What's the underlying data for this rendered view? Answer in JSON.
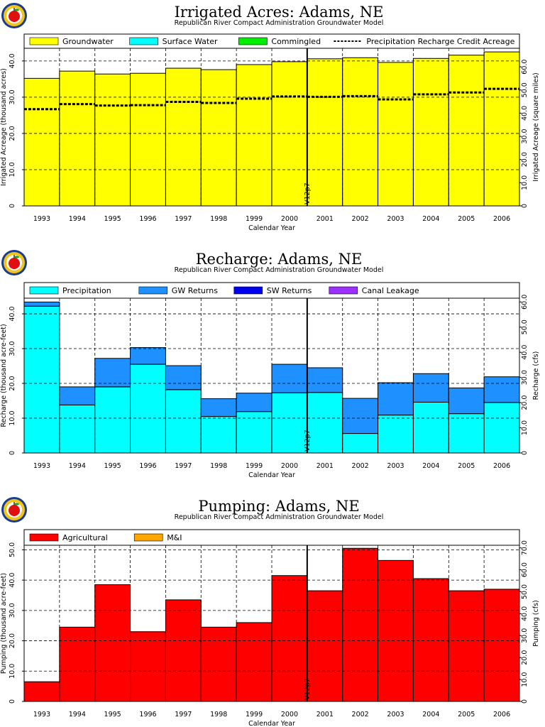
{
  "chart_data": [
    {
      "type": "bar",
      "title": "Irrigated Acres: Adams, NE",
      "subtitle": "Republican River Compact Administration Groundwater Model",
      "xlabel": "Calendar Year",
      "ylabel": "Irrigated Acreage (thousand acres)",
      "y2label": "Irrigated Acreage (square miles)",
      "categories": [
        "1993",
        "1994",
        "1995",
        "1996",
        "1997",
        "1998",
        "1999",
        "2000",
        "2001",
        "2002",
        "2003",
        "2004",
        "2005",
        "2006"
      ],
      "ylim": [
        0,
        43.5
      ],
      "yticks": [
        0,
        10.0,
        20.0,
        30.0,
        40.0
      ],
      "yticklabels": [
        "0",
        "10.0",
        "20.0",
        "30.0",
        "40.0"
      ],
      "y2lim": [
        0,
        68
      ],
      "y2ticks": [
        0,
        10.0,
        20.0,
        30.0,
        40.0,
        50.0,
        60.0
      ],
      "y2ticklabels": [
        "0",
        "10.0",
        "20.0",
        "30.0",
        "40.0",
        "50.0",
        "60.0"
      ],
      "series": [
        {
          "name": "Groundwater",
          "color": "#ffff00",
          "kind": "bar",
          "values": [
            35.2,
            37.2,
            36.4,
            36.6,
            38.0,
            37.6,
            39.0,
            39.8,
            40.6,
            40.9,
            39.6,
            40.7,
            41.6,
            42.5
          ]
        },
        {
          "name": "Surface Water",
          "color": "#00ffff",
          "kind": "bar",
          "values": [
            0,
            0,
            0,
            0,
            0,
            0,
            0,
            0,
            0,
            0,
            0,
            0,
            0,
            0
          ]
        },
        {
          "name": "Commingled",
          "color": "#00ee00",
          "kind": "bar",
          "values": [
            0,
            0,
            0,
            0,
            0,
            0,
            0,
            0,
            0,
            0,
            0,
            0,
            0,
            0
          ]
        },
        {
          "name": "Precipitation Recharge Credit Acreage",
          "color": "#000000",
          "kind": "dashed-step",
          "values": [
            26.7,
            28.1,
            27.7,
            27.8,
            28.7,
            28.4,
            29.6,
            30.2,
            30.1,
            30.3,
            29.4,
            30.8,
            31.3,
            32.3
          ]
        }
      ],
      "annotations": [
        {
          "text": "V12p7",
          "at_boundary": 8
        }
      ],
      "legend": "top"
    },
    {
      "type": "bar",
      "title": "Recharge: Adams, NE",
      "subtitle": "Republican River Compact Administration Groundwater Model",
      "xlabel": "Calendar Year",
      "ylabel": "Recharge (thousand acre-feet)",
      "y2label": "Recharge (cfs)",
      "categories": [
        "1993",
        "1994",
        "1995",
        "1996",
        "1997",
        "1998",
        "1999",
        "2000",
        "2001",
        "2002",
        "2003",
        "2004",
        "2005",
        "2006"
      ],
      "ylim": [
        0,
        44.5
      ],
      "yticks": [
        0,
        10.0,
        20.0,
        30.0,
        40.0
      ],
      "yticklabels": [
        "0",
        "10.0",
        "20.0",
        "30.0",
        "40.0"
      ],
      "y2lim": [
        0,
        61.5
      ],
      "y2ticks": [
        0,
        10.0,
        20.0,
        30.0,
        40.0,
        50.0,
        60.0
      ],
      "y2ticklabels": [
        "0",
        "10.0",
        "20.0",
        "30.0",
        "40.0",
        "50.0",
        "60.0"
      ],
      "stacked": true,
      "series": [
        {
          "name": "Precipitation",
          "color": "#00ffff",
          "kind": "bar",
          "values": [
            42.2,
            13.8,
            19.0,
            25.5,
            18.2,
            10.5,
            11.9,
            17.3,
            17.4,
            5.6,
            10.9,
            14.6,
            11.3,
            14.5
          ]
        },
        {
          "name": "GW Returns",
          "color": "#1e90ff",
          "kind": "bar",
          "values": [
            1.2,
            5.2,
            8.2,
            4.8,
            6.9,
            5.1,
            5.3,
            8.2,
            7.1,
            10.1,
            9.3,
            8.2,
            7.4,
            7.4
          ]
        },
        {
          "name": "SW Returns",
          "color": "#0000ee",
          "kind": "bar",
          "values": [
            0,
            0,
            0,
            0,
            0,
            0,
            0,
            0,
            0,
            0,
            0,
            0,
            0,
            0
          ]
        },
        {
          "name": "Canal Leakage",
          "color": "#9b30ff",
          "kind": "bar",
          "values": [
            0,
            0,
            0,
            0,
            0,
            0,
            0,
            0,
            0,
            0,
            0,
            0,
            0,
            0
          ]
        }
      ],
      "annotations": [
        {
          "text": "V12p7",
          "at_boundary": 8
        }
      ],
      "legend": "top"
    },
    {
      "type": "bar",
      "title": "Pumping: Adams, NE",
      "subtitle": "Republican River Compact Administration Groundwater Model",
      "xlabel": "Calendar Year",
      "ylabel": "Pumping (thousand acre-feet)",
      "y2label": "Pumping (cfs)",
      "categories": [
        "1993",
        "1994",
        "1995",
        "1996",
        "1997",
        "1998",
        "1999",
        "2000",
        "2001",
        "2002",
        "2003",
        "2004",
        "2005",
        "2006"
      ],
      "ylim": [
        0,
        51.5
      ],
      "yticks": [
        0,
        10.0,
        20.0,
        30.0,
        40.0,
        50.0
      ],
      "yticklabels": [
        "0",
        "10.0",
        "20.0",
        "30.0",
        "40.0",
        "50.0"
      ],
      "y2lim": [
        0,
        71.2
      ],
      "y2ticks": [
        0,
        10.0,
        20.0,
        30.0,
        40.0,
        50.0,
        60.0,
        70.0
      ],
      "y2ticklabels": [
        "0",
        "10.0",
        "20.0",
        "30.0",
        "40.0",
        "50.0",
        "60.0",
        "70.0"
      ],
      "stacked": true,
      "series": [
        {
          "name": "Agricultural",
          "color": "#ff0000",
          "kind": "bar",
          "values": [
            6.5,
            24.5,
            38.5,
            23.0,
            33.5,
            24.5,
            26.0,
            41.5,
            36.5,
            50.5,
            46.5,
            40.5,
            36.5,
            37.0
          ]
        },
        {
          "name": "M&I",
          "color": "#ffa500",
          "kind": "bar",
          "values": [
            0,
            0,
            0,
            0,
            0,
            0,
            0,
            0,
            0,
            0,
            0,
            0,
            0,
            0
          ]
        }
      ],
      "annotations": [
        {
          "text": "V12p7",
          "at_boundary": 8
        }
      ],
      "legend": "top"
    }
  ]
}
